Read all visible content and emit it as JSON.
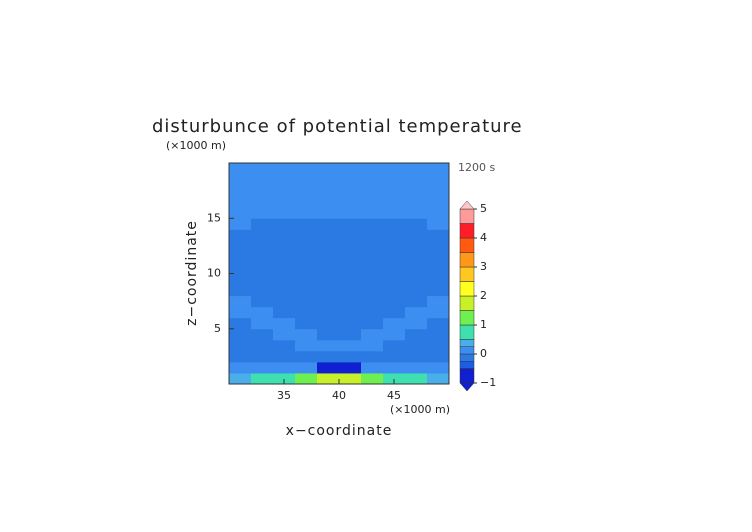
{
  "chart_data": {
    "type": "contour",
    "title": "disturbunce of potential temperature",
    "time_label": "1200 s",
    "xlabel": "x−coordinate",
    "ylabel": "z−coordinate",
    "x_unit": "(×1000 m)",
    "y_unit": "(×1000 m)",
    "xlim": [
      30,
      50
    ],
    "ylim": [
      0,
      20
    ],
    "xticks": [
      35,
      40,
      45
    ],
    "yticks": [
      5,
      10,
      15
    ],
    "x": [
      31,
      33,
      35,
      37,
      39,
      41,
      43,
      45,
      47,
      49
    ],
    "y": [
      0.5,
      1.5,
      2.5,
      3.5,
      4.5,
      5.5,
      6.5,
      7.5,
      8.5,
      9.5,
      10.5,
      11.5,
      12.5,
      13.5,
      14.5,
      15.5,
      16.5,
      17.5,
      18.5,
      19.5
    ],
    "z": [
      [
        0.4,
        0.6,
        0.9,
        1.2,
        1.6,
        1.6,
        1.2,
        0.9,
        0.6,
        0.4
      ],
      [
        0.1,
        0.1,
        0.1,
        0.1,
        -0.6,
        -0.6,
        0.1,
        0.1,
        0.1,
        0.1
      ],
      [
        -0.1,
        -0.1,
        -0.1,
        -0.1,
        -0.1,
        -0.1,
        -0.1,
        -0.1,
        -0.1,
        -0.1
      ],
      [
        -0.1,
        -0.1,
        -0.1,
        0.1,
        0.1,
        0.1,
        0.1,
        -0.1,
        -0.1,
        -0.1
      ],
      [
        -0.1,
        -0.1,
        0.1,
        0.1,
        -0.1,
        -0.1,
        0.1,
        0.1,
        -0.1,
        -0.1
      ],
      [
        -0.1,
        0.1,
        0.1,
        -0.1,
        -0.1,
        -0.1,
        -0.1,
        0.1,
        0.1,
        -0.1
      ],
      [
        0.1,
        0.1,
        -0.1,
        -0.1,
        -0.1,
        -0.1,
        -0.1,
        -0.1,
        0.1,
        0.1
      ],
      [
        0.1,
        -0.1,
        -0.1,
        -0.1,
        -0.1,
        -0.1,
        -0.1,
        -0.1,
        -0.1,
        0.1
      ],
      [
        -0.1,
        -0.1,
        -0.1,
        -0.1,
        -0.1,
        -0.1,
        -0.1,
        -0.1,
        -0.1,
        -0.1
      ],
      [
        -0.1,
        -0.1,
        -0.1,
        -0.1,
        -0.1,
        -0.1,
        -0.1,
        -0.1,
        -0.1,
        -0.1
      ],
      [
        -0.1,
        -0.1,
        -0.1,
        -0.1,
        -0.1,
        -0.1,
        -0.1,
        -0.1,
        -0.1,
        -0.1
      ],
      [
        -0.1,
        -0.1,
        -0.1,
        -0.1,
        -0.1,
        -0.1,
        -0.1,
        -0.1,
        -0.1,
        -0.1
      ],
      [
        -0.1,
        -0.1,
        -0.1,
        -0.1,
        -0.1,
        -0.1,
        -0.1,
        -0.1,
        -0.1,
        -0.1
      ],
      [
        -0.1,
        -0.1,
        -0.1,
        -0.1,
        -0.1,
        -0.1,
        -0.1,
        -0.1,
        -0.1,
        -0.1
      ],
      [
        0.1,
        -0.1,
        -0.1,
        -0.1,
        -0.1,
        -0.1,
        -0.1,
        -0.1,
        -0.1,
        0.1
      ],
      [
        0.1,
        0.1,
        0.1,
        0.1,
        0.1,
        0.1,
        0.1,
        0.1,
        0.1,
        0.1
      ],
      [
        0.1,
        0.1,
        0.1,
        0.1,
        0.1,
        0.1,
        0.1,
        0.1,
        0.1,
        0.1
      ],
      [
        0.1,
        0.1,
        0.1,
        0.1,
        0.1,
        0.1,
        0.1,
        0.1,
        0.1,
        0.1
      ],
      [
        0.1,
        0.1,
        0.1,
        0.1,
        0.1,
        0.1,
        0.1,
        0.1,
        0.1,
        0.1
      ],
      [
        0.1,
        0.1,
        0.1,
        0.1,
        0.1,
        0.1,
        0.1,
        0.1,
        0.1,
        0.1
      ]
    ],
    "levels": [
      -1,
      -0.5,
      -0.25,
      0,
      0.25,
      0.5,
      1,
      1.5,
      2,
      2.5,
      3,
      3.5,
      4,
      4.5,
      5
    ],
    "colors": [
      "#1020d0",
      "#1f5ce6",
      "#2b7ae4",
      "#3c8ef0",
      "#4aaee8",
      "#3ee0b0",
      "#6ef050",
      "#c8f028",
      "#ffff20",
      "#ffc820",
      "#ff9818",
      "#ff5a10",
      "#ff1e28",
      "#ff9a9a"
    ],
    "colorbar_ticks": [
      {
        "value": -1,
        "label": "−1"
      },
      0,
      1,
      2,
      3,
      4,
      5
    ]
  }
}
